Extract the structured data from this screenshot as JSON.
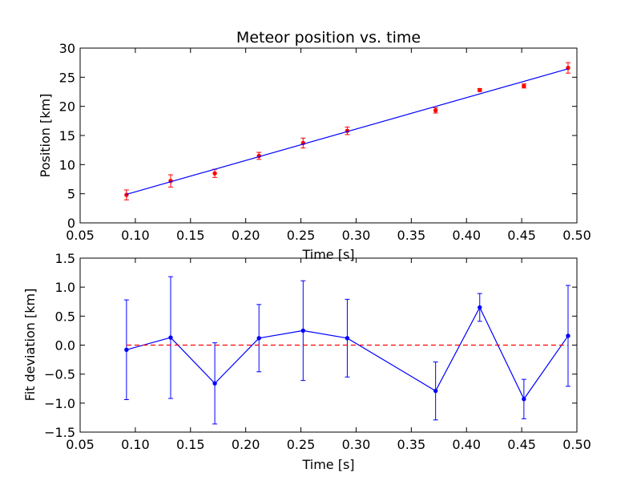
{
  "chart_data": [
    {
      "type": "scatter",
      "title": "Meteor position vs. time",
      "xlabel": "Time [s]",
      "ylabel": "Position [km]",
      "xlim": [
        0.05,
        0.5
      ],
      "ylim": [
        0,
        30
      ],
      "xticks": [
        "0.05",
        "0.10",
        "0.15",
        "0.20",
        "0.25",
        "0.30",
        "0.35",
        "0.40",
        "0.45",
        "0.50"
      ],
      "yticks": [
        "0",
        "5",
        "10",
        "15",
        "20",
        "25",
        "30"
      ],
      "grid": false,
      "series": [
        {
          "kind": "errorbar",
          "color": "#ff0000",
          "x": [
            0.092,
            0.132,
            0.172,
            0.212,
            0.252,
            0.292,
            0.372,
            0.412,
            0.452,
            0.492
          ],
          "y": [
            4.8,
            7.2,
            8.5,
            11.5,
            13.7,
            15.8,
            19.3,
            22.8,
            23.5,
            26.6
          ],
          "yerr": [
            0.85,
            1.05,
            0.7,
            0.6,
            0.85,
            0.65,
            0.45,
            0.25,
            0.35,
            0.9
          ]
        },
        {
          "kind": "fit-line",
          "color": "#0000ff",
          "x": [
            0.092,
            0.492
          ],
          "y": [
            4.9,
            26.45
          ]
        }
      ]
    },
    {
      "type": "line",
      "title": "",
      "xlabel": "Time [s]",
      "ylabel": "Fit deviation [km]",
      "xlim": [
        0.05,
        0.5
      ],
      "ylim": [
        -1.5,
        1.5
      ],
      "xticks": [
        "0.05",
        "0.10",
        "0.15",
        "0.20",
        "0.25",
        "0.30",
        "0.35",
        "0.40",
        "0.45",
        "0.50"
      ],
      "yticks": [
        "−1.5",
        "−1.0",
        "−0.5",
        "0.0",
        "0.5",
        "1.0",
        "1.5"
      ],
      "grid": false,
      "series": [
        {
          "kind": "errorbar-line",
          "color": "#0000ff",
          "x": [
            0.092,
            0.132,
            0.172,
            0.212,
            0.252,
            0.292,
            0.372,
            0.412,
            0.452,
            0.492
          ],
          "y": [
            -0.08,
            0.13,
            -0.66,
            0.12,
            0.25,
            0.12,
            -0.79,
            0.65,
            -0.93,
            0.16
          ],
          "yerr": [
            0.86,
            1.05,
            0.7,
            0.58,
            0.86,
            0.67,
            0.5,
            0.24,
            0.34,
            0.87
          ]
        },
        {
          "kind": "reference-line",
          "color": "#ff0000",
          "style": "dashed",
          "x": [
            0.092,
            0.492
          ],
          "y": [
            0,
            0
          ]
        }
      ]
    }
  ]
}
